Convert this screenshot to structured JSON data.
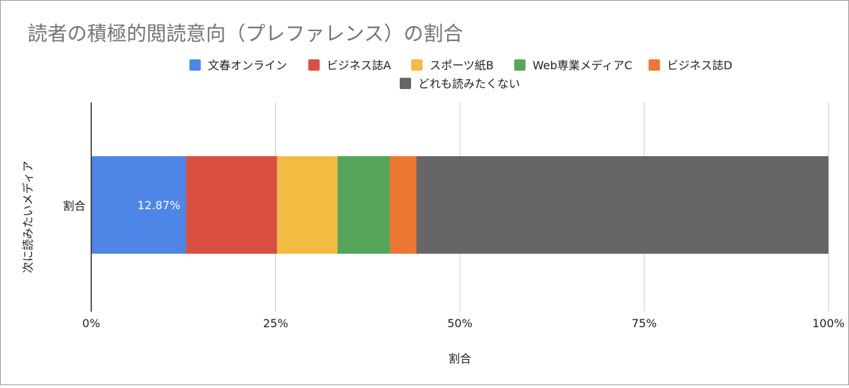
{
  "chart_data": {
    "type": "bar",
    "orientation": "horizontal",
    "stacked": true,
    "title": "読者の積極的閲読意向（プレファレンス）の割合",
    "xlabel": "割合",
    "ylabel": "次に読みたいメディア",
    "categories": [
      "割合"
    ],
    "x_ticks": [
      "0%",
      "25%",
      "50%",
      "75%",
      "100%"
    ],
    "xlim": [
      0,
      100
    ],
    "grid": true,
    "legend_position": "top",
    "series": [
      {
        "name": "文春オンライン",
        "values": [
          12.87
        ],
        "color": "#4e86e8",
        "data_label": "12.87%"
      },
      {
        "name": "ビジネス誌A",
        "values": [
          12.33
        ],
        "color": "#d94f40",
        "data_label": ""
      },
      {
        "name": "スポーツ紙B",
        "values": [
          8.2
        ],
        "color": "#f2bc42",
        "data_label": ""
      },
      {
        "name": "Web専業メディアC",
        "values": [
          7.1
        ],
        "color": "#55a65a",
        "data_label": ""
      },
      {
        "name": "ビジネス誌D",
        "values": [
          3.6
        ],
        "color": "#ee7733",
        "data_label": ""
      },
      {
        "name": "どれも読みたくない",
        "values": [
          55.9
        ],
        "color": "#666666",
        "data_label": ""
      }
    ]
  }
}
